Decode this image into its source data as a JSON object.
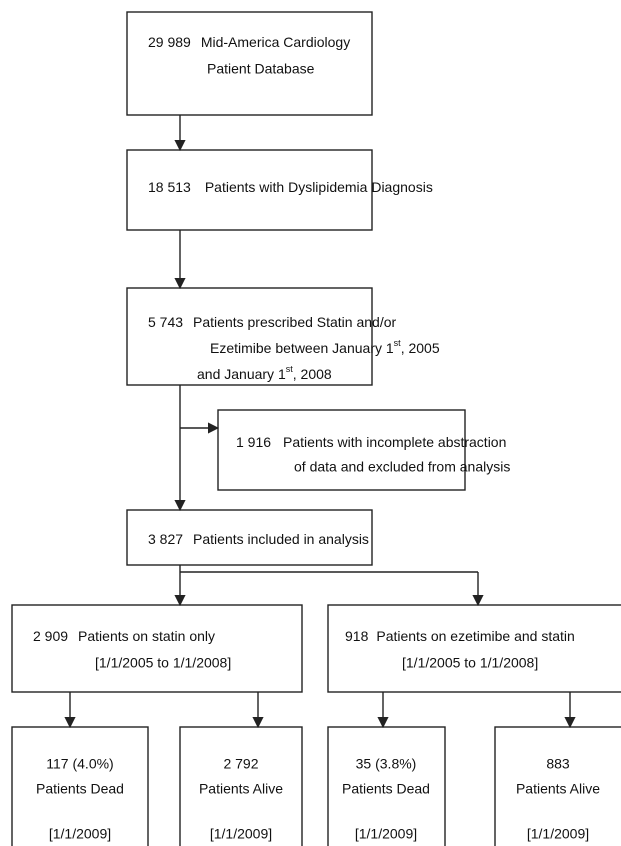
{
  "nodes": [
    {
      "count": "29 989",
      "lines": [
        [
          "Mid-America Cardiology"
        ],
        [
          "Patient Database"
        ]
      ]
    },
    {
      "count": "18 513",
      "lines": [
        [
          "Patients with Dyslipidemia Diagnosis"
        ]
      ]
    },
    {
      "count": "5 743",
      "lines": [
        [
          "Patients prescribed Statin and/or"
        ],
        [
          "Ezetimibe between January 1",
          "st",
          ", 2005"
        ],
        [
          "and January 1",
          "st",
          ", 2008"
        ]
      ]
    },
    {
      "count": "1 916",
      "lines": [
        [
          "Patients with incomplete abstraction"
        ],
        [
          "of data and excluded from analysis"
        ]
      ]
    },
    {
      "count": "3 827",
      "lines": [
        [
          "Patients included in analysis"
        ]
      ]
    },
    {
      "count": "2 909",
      "lines": [
        [
          "Patients on statin only"
        ],
        [
          "[1/1/2005 to 1/1/2008]"
        ]
      ]
    },
    {
      "count": "918",
      "lines": [
        [
          "Patients on ezetimibe and statin"
        ],
        [
          "[1/1/2005 to 1/1/2008]"
        ]
      ]
    },
    {
      "count": "117 (4.0%)",
      "lines": [
        [
          "Patients Dead"
        ],
        [
          "[1/1/2009]"
        ]
      ]
    },
    {
      "count": "2 792",
      "lines": [
        [
          "Patients Alive"
        ],
        [
          "[1/1/2009]"
        ]
      ]
    },
    {
      "count": "35 (3.8%)",
      "lines": [
        [
          "Patients Dead"
        ],
        [
          "[1/1/2009]"
        ]
      ]
    },
    {
      "count": "883",
      "lines": [
        [
          "Patients Alive"
        ],
        [
          "[1/1/2009]"
        ]
      ]
    }
  ]
}
